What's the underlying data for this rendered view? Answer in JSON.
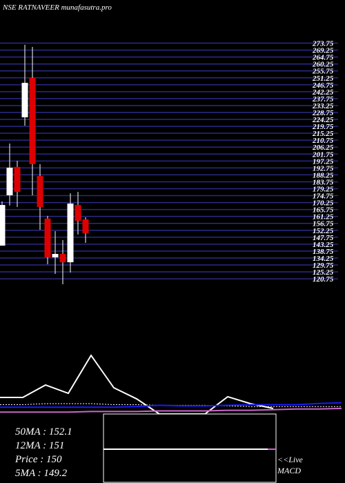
{
  "chart_data": [
    {
      "type": "candlestick",
      "title": "NSE RATNAVEER munafasutra.pro",
      "up_color": "#ffffff",
      "down_color": "#dd0000",
      "grid_color": "#2a2a8a",
      "open": [
        142.3,
        175.0,
        193.4,
        225.6,
        251.2,
        187.5,
        159.8,
        134.7,
        136.9,
        131.5,
        168.7,
        159.3
      ],
      "high": [
        171.0,
        208.6,
        197.4,
        272.7,
        271.3,
        195.2,
        161.6,
        151.7,
        145.9,
        176.3,
        177.2,
        160.7
      ],
      "low": [
        142.3,
        168.3,
        167.4,
        220.2,
        175.0,
        152.6,
        130.2,
        123.9,
        117.2,
        124.8,
        149.5,
        144.1
      ],
      "close": [
        168.7,
        192.9,
        177.2,
        248.0,
        195.2,
        167.4,
        134.7,
        136.9,
        131.5,
        169.6,
        158.4,
        150.3
      ],
      "ylim": [
        116.3,
        274
      ],
      "yticks": [
        273.75,
        269.25,
        264.75,
        260.25,
        255.75,
        251.25,
        246.75,
        242.25,
        237.75,
        233.25,
        228.75,
        224.25,
        219.75,
        215.25,
        210.75,
        206.25,
        201.75,
        197.25,
        192.75,
        188.25,
        183.75,
        179.25,
        174.75,
        170.25,
        165.75,
        161.25,
        156.75,
        152.25,
        147.75,
        143.25,
        138.75,
        134.25,
        129.75,
        125.25,
        120.75
      ],
      "grid": true
    },
    {
      "type": "line",
      "x": [
        0,
        1,
        2,
        3,
        4,
        5,
        6,
        7,
        8,
        9,
        10,
        11,
        12,
        13,
        14,
        15
      ],
      "xlim": [
        0,
        15
      ],
      "ylim": [
        0,
        100
      ],
      "series": [
        {
          "color": "#ffffff",
          "style": "solid",
          "values": [
            26.7,
            26.7,
            46.7,
            33.3,
            94.4,
            42.2,
            24.4,
            0,
            0,
            0,
            27.8,
            16.7,
            8.9,
            null,
            null,
            null
          ]
        },
        {
          "color": "#ffffff",
          "style": "dotted",
          "values": [
            15,
            15,
            16.7,
            16.7,
            16.7,
            15,
            15,
            14,
            14,
            14,
            13,
            12,
            12,
            12,
            12,
            12
          ]
        },
        {
          "color": "#1a1aff",
          "style": "solid",
          "values": [
            11,
            11,
            11,
            11,
            11,
            11,
            12,
            14,
            13,
            13,
            14,
            15,
            15,
            15,
            17,
            18
          ]
        },
        {
          "color": "#cc66cc",
          "style": "solid",
          "values": [
            3,
            3,
            3,
            3,
            4,
            4,
            4,
            5,
            5,
            5,
            6,
            6,
            7,
            8,
            8,
            9
          ]
        }
      ],
      "stats": [
        "50MA : 152.1",
        "12MA : 151",
        "Price   : 150",
        "5MA : 149.2"
      ],
      "macd_label": [
        "<<Live",
        "MACD"
      ]
    }
  ]
}
